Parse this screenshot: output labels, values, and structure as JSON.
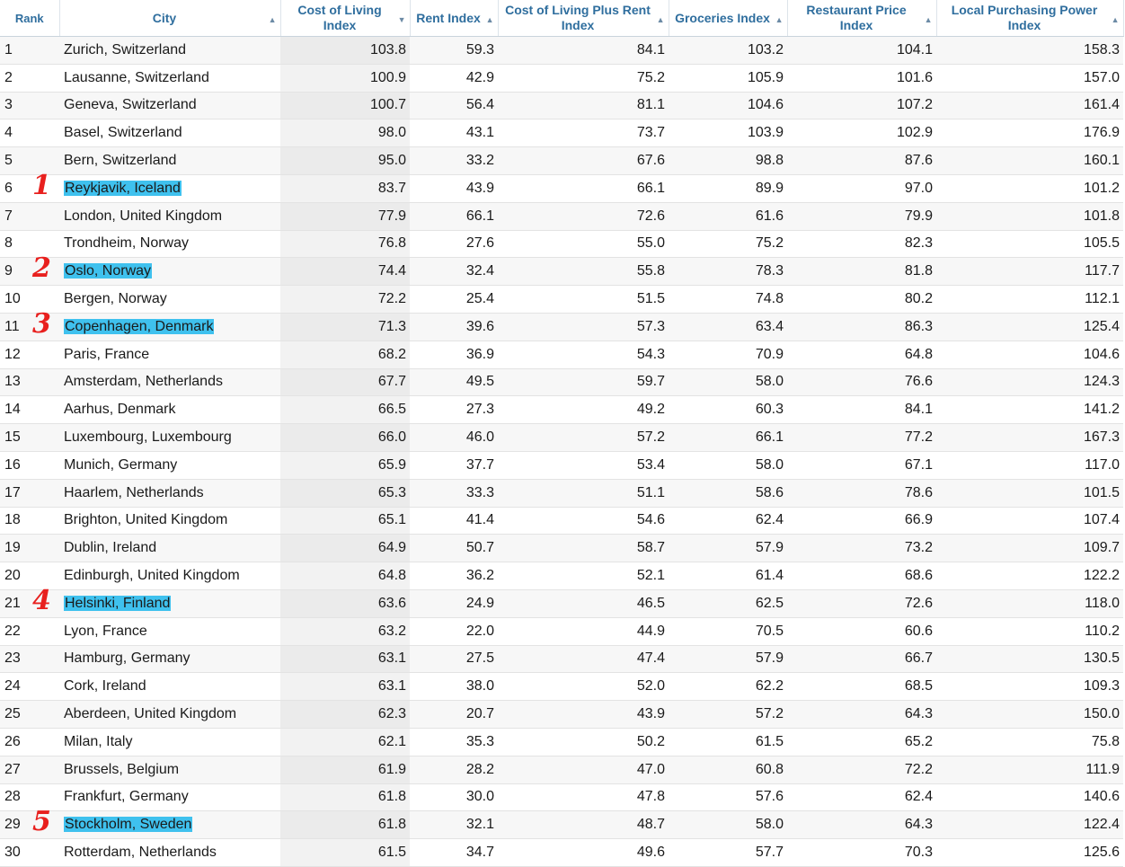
{
  "columns": [
    {
      "label": "Rank"
    },
    {
      "label": "City"
    },
    {
      "label": "Cost of Living Index"
    },
    {
      "label": "Rent Index"
    },
    {
      "label": "Cost of Living Plus Rent Index"
    },
    {
      "label": "Groceries Index"
    },
    {
      "label": "Restaurant Price Index"
    },
    {
      "label": "Local Purchasing Power Index"
    }
  ],
  "highlight_color": "#3fc1ee",
  "annotation_color": "#e8201e",
  "rows": [
    {
      "rank": "1",
      "city": "Zurich, Switzerland",
      "col": "103.8",
      "rent": "59.3",
      "colplus": "84.1",
      "groc": "103.2",
      "rest": "104.1",
      "lpp": "158.3"
    },
    {
      "rank": "2",
      "city": "Lausanne, Switzerland",
      "col": "100.9",
      "rent": "42.9",
      "colplus": "75.2",
      "groc": "105.9",
      "rest": "101.6",
      "lpp": "157.0"
    },
    {
      "rank": "3",
      "city": "Geneva, Switzerland",
      "col": "100.7",
      "rent": "56.4",
      "colplus": "81.1",
      "groc": "104.6",
      "rest": "107.2",
      "lpp": "161.4"
    },
    {
      "rank": "4",
      "city": "Basel, Switzerland",
      "col": "98.0",
      "rent": "43.1",
      "colplus": "73.7",
      "groc": "103.9",
      "rest": "102.9",
      "lpp": "176.9"
    },
    {
      "rank": "5",
      "city": "Bern, Switzerland",
      "col": "95.0",
      "rent": "33.2",
      "colplus": "67.6",
      "groc": "98.8",
      "rest": "87.6",
      "lpp": "160.1"
    },
    {
      "rank": "6",
      "city": "Reykjavik, Iceland",
      "col": "83.7",
      "rent": "43.9",
      "colplus": "66.1",
      "groc": "89.9",
      "rest": "97.0",
      "lpp": "101.2",
      "highlight": true,
      "mark": "1"
    },
    {
      "rank": "7",
      "city": "London, United Kingdom",
      "col": "77.9",
      "rent": "66.1",
      "colplus": "72.6",
      "groc": "61.6",
      "rest": "79.9",
      "lpp": "101.8"
    },
    {
      "rank": "8",
      "city": "Trondheim, Norway",
      "col": "76.8",
      "rent": "27.6",
      "colplus": "55.0",
      "groc": "75.2",
      "rest": "82.3",
      "lpp": "105.5"
    },
    {
      "rank": "9",
      "city": "Oslo, Norway",
      "col": "74.4",
      "rent": "32.4",
      "colplus": "55.8",
      "groc": "78.3",
      "rest": "81.8",
      "lpp": "117.7",
      "highlight": true,
      "mark": "2"
    },
    {
      "rank": "10",
      "city": "Bergen, Norway",
      "col": "72.2",
      "rent": "25.4",
      "colplus": "51.5",
      "groc": "74.8",
      "rest": "80.2",
      "lpp": "112.1"
    },
    {
      "rank": "11",
      "city": "Copenhagen, Denmark",
      "col": "71.3",
      "rent": "39.6",
      "colplus": "57.3",
      "groc": "63.4",
      "rest": "86.3",
      "lpp": "125.4",
      "highlight": true,
      "mark": "3"
    },
    {
      "rank": "12",
      "city": "Paris, France",
      "col": "68.2",
      "rent": "36.9",
      "colplus": "54.3",
      "groc": "70.9",
      "rest": "64.8",
      "lpp": "104.6"
    },
    {
      "rank": "13",
      "city": "Amsterdam, Netherlands",
      "col": "67.7",
      "rent": "49.5",
      "colplus": "59.7",
      "groc": "58.0",
      "rest": "76.6",
      "lpp": "124.3"
    },
    {
      "rank": "14",
      "city": "Aarhus, Denmark",
      "col": "66.5",
      "rent": "27.3",
      "colplus": "49.2",
      "groc": "60.3",
      "rest": "84.1",
      "lpp": "141.2"
    },
    {
      "rank": "15",
      "city": "Luxembourg, Luxembourg",
      "col": "66.0",
      "rent": "46.0",
      "colplus": "57.2",
      "groc": "66.1",
      "rest": "77.2",
      "lpp": "167.3"
    },
    {
      "rank": "16",
      "city": "Munich, Germany",
      "col": "65.9",
      "rent": "37.7",
      "colplus": "53.4",
      "groc": "58.0",
      "rest": "67.1",
      "lpp": "117.0"
    },
    {
      "rank": "17",
      "city": "Haarlem, Netherlands",
      "col": "65.3",
      "rent": "33.3",
      "colplus": "51.1",
      "groc": "58.6",
      "rest": "78.6",
      "lpp": "101.5"
    },
    {
      "rank": "18",
      "city": "Brighton, United Kingdom",
      "col": "65.1",
      "rent": "41.4",
      "colplus": "54.6",
      "groc": "62.4",
      "rest": "66.9",
      "lpp": "107.4"
    },
    {
      "rank": "19",
      "city": "Dublin, Ireland",
      "col": "64.9",
      "rent": "50.7",
      "colplus": "58.7",
      "groc": "57.9",
      "rest": "73.2",
      "lpp": "109.7"
    },
    {
      "rank": "20",
      "city": "Edinburgh, United Kingdom",
      "col": "64.8",
      "rent": "36.2",
      "colplus": "52.1",
      "groc": "61.4",
      "rest": "68.6",
      "lpp": "122.2"
    },
    {
      "rank": "21",
      "city": "Helsinki, Finland",
      "col": "63.6",
      "rent": "24.9",
      "colplus": "46.5",
      "groc": "62.5",
      "rest": "72.6",
      "lpp": "118.0",
      "highlight": true,
      "mark": "4"
    },
    {
      "rank": "22",
      "city": "Lyon, France",
      "col": "63.2",
      "rent": "22.0",
      "colplus": "44.9",
      "groc": "70.5",
      "rest": "60.6",
      "lpp": "110.2"
    },
    {
      "rank": "23",
      "city": "Hamburg, Germany",
      "col": "63.1",
      "rent": "27.5",
      "colplus": "47.4",
      "groc": "57.9",
      "rest": "66.7",
      "lpp": "130.5"
    },
    {
      "rank": "24",
      "city": "Cork, Ireland",
      "col": "63.1",
      "rent": "38.0",
      "colplus": "52.0",
      "groc": "62.2",
      "rest": "68.5",
      "lpp": "109.3"
    },
    {
      "rank": "25",
      "city": "Aberdeen, United Kingdom",
      "col": "62.3",
      "rent": "20.7",
      "colplus": "43.9",
      "groc": "57.2",
      "rest": "64.3",
      "lpp": "150.0"
    },
    {
      "rank": "26",
      "city": "Milan, Italy",
      "col": "62.1",
      "rent": "35.3",
      "colplus": "50.2",
      "groc": "61.5",
      "rest": "65.2",
      "lpp": "75.8"
    },
    {
      "rank": "27",
      "city": "Brussels, Belgium",
      "col": "61.9",
      "rent": "28.2",
      "colplus": "47.0",
      "groc": "60.8",
      "rest": "72.2",
      "lpp": "111.9"
    },
    {
      "rank": "28",
      "city": "Frankfurt, Germany",
      "col": "61.8",
      "rent": "30.0",
      "colplus": "47.8",
      "groc": "57.6",
      "rest": "62.4",
      "lpp": "140.6"
    },
    {
      "rank": "29",
      "city": "Stockholm, Sweden",
      "col": "61.8",
      "rent": "32.1",
      "colplus": "48.7",
      "groc": "58.0",
      "rest": "64.3",
      "lpp": "122.4",
      "highlight": true,
      "mark": "5"
    },
    {
      "rank": "30",
      "city": "Rotterdam, Netherlands",
      "col": "61.5",
      "rent": "34.7",
      "colplus": "49.6",
      "groc": "57.7",
      "rest": "70.3",
      "lpp": "125.6"
    }
  ]
}
